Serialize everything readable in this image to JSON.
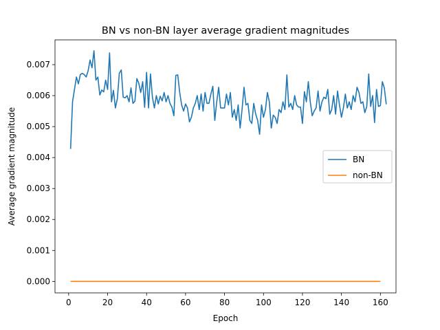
{
  "chart_data": {
    "type": "line",
    "title": "BN vs non-BN layer average gradient magnitudes",
    "xlabel": "Epoch",
    "ylabel": "Average gradient magnitude",
    "xlim": [
      -7,
      168
    ],
    "ylim": [
      -0.00037,
      0.0078
    ],
    "xticks": [
      0,
      20,
      40,
      60,
      80,
      100,
      120,
      140,
      160
    ],
    "yticks": [
      0.0,
      0.001,
      0.002,
      0.003,
      0.004,
      0.005,
      0.006,
      0.007
    ],
    "ytick_labels": [
      "0.000",
      "0.001",
      "0.002",
      "0.003",
      "0.004",
      "0.005",
      "0.006",
      "0.007"
    ],
    "grid": false,
    "legend_position": "center-right",
    "series": [
      {
        "name": "BN",
        "color": "#1f77b4",
        "x_start": 1,
        "values": [
          0.00428,
          0.0058,
          0.0062,
          0.0066,
          0.00638,
          0.00668,
          0.00672,
          0.00668,
          0.0066,
          0.0068,
          0.00715,
          0.0069,
          0.00745,
          0.0065,
          0.0066,
          0.00602,
          0.00618,
          0.00612,
          0.0065,
          0.0062,
          0.00738,
          0.0058,
          0.00617,
          0.0056,
          0.0059,
          0.00672,
          0.00683,
          0.00595,
          0.00593,
          0.006,
          0.0058,
          0.00625,
          0.00575,
          0.00582,
          0.00655,
          0.0064,
          0.0061,
          0.00645,
          0.00562,
          0.00675,
          0.0056,
          0.0067,
          0.00595,
          0.0056,
          0.006,
          0.00573,
          0.00598,
          0.00583,
          0.0061,
          0.0058,
          0.006,
          0.00575,
          0.00563,
          0.00535,
          0.00665,
          0.00667,
          0.0061,
          0.0057,
          0.0055,
          0.00573,
          0.0056,
          0.00515,
          0.0053,
          0.0056,
          0.00575,
          0.006,
          0.00555,
          0.00605,
          0.0055,
          0.0061,
          0.00575,
          0.00575,
          0.00605,
          0.0063,
          0.0052,
          0.0058,
          0.00627,
          0.0056,
          0.0056,
          0.0056,
          0.00605,
          0.0057,
          0.0061,
          0.0053,
          0.00555,
          0.0052,
          0.0057,
          0.00495,
          0.00555,
          0.00627,
          0.0057,
          0.00575,
          0.0052,
          0.0051,
          0.00575,
          0.0054,
          0.0052,
          0.00475,
          0.0057,
          0.0053,
          0.00555,
          0.0061,
          0.0058,
          0.00495,
          0.00537,
          0.0053,
          0.0051,
          0.00555,
          0.00545,
          0.0058,
          0.00555,
          0.00667,
          0.00563,
          0.00575,
          0.00555,
          0.006,
          0.0057,
          0.00563,
          0.00563,
          0.0051,
          0.00613,
          0.0058,
          0.00645,
          0.0058,
          0.00535,
          0.0055,
          0.0056,
          0.00615,
          0.0055,
          0.0058,
          0.00595,
          0.0059,
          0.0062,
          0.0054,
          0.00555,
          0.006,
          0.0054,
          0.00615,
          0.0057,
          0.0053,
          0.0056,
          0.00605,
          0.0056,
          0.0058,
          0.00555,
          0.006,
          0.0058,
          0.00627,
          0.0061,
          0.00575,
          0.0058,
          0.00545,
          0.00565,
          0.0067,
          0.00565,
          0.006,
          0.00513,
          0.0062,
          0.00565,
          0.00568,
          0.00645,
          0.00625,
          0.00572
        ]
      },
      {
        "name": "non-BN",
        "color": "#ff7f0e",
        "x_start": 1,
        "constant_value": 1.5e-06,
        "count": 160
      }
    ]
  }
}
